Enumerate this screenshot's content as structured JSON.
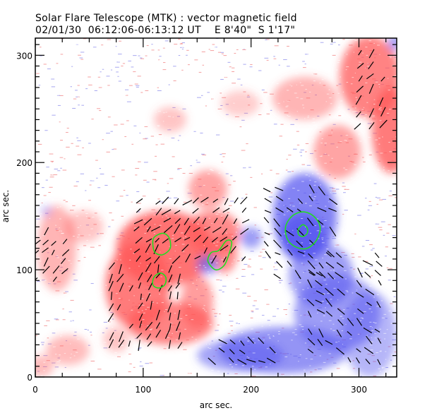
{
  "chart_data": {
    "type": "heatmap",
    "title": "Solar Flare Telescope (MTK) : vector magnetic field",
    "subtitle": "02/01/30  06:12:06-06:13:12 UT    E 8'40\"  S 1'17\"",
    "xlabel": "arc sec.",
    "ylabel": "arc sec.",
    "xlim": [
      0,
      335
    ],
    "ylim": [
      0,
      316
    ],
    "xticks": [
      0,
      100,
      200,
      300
    ],
    "yticks": [
      0,
      100,
      200,
      300
    ],
    "x_minor_step": 25,
    "y_minor_step": 10,
    "grid": false,
    "colormap": {
      "positive_polarity": "#ff5a5a",
      "negative_polarity": "#5a5af0",
      "background": "#ffffff",
      "vectors": "#000000",
      "contours": "#22dd22"
    },
    "positive_regions": [
      {
        "x": 310,
        "y": 280,
        "rx": 28,
        "ry": 38,
        "strength": 0.75
      },
      {
        "x": 330,
        "y": 230,
        "rx": 18,
        "ry": 40,
        "strength": 0.8
      },
      {
        "x": 250,
        "y": 260,
        "rx": 30,
        "ry": 20,
        "strength": 0.45
      },
      {
        "x": 280,
        "y": 210,
        "rx": 22,
        "ry": 25,
        "strength": 0.55
      },
      {
        "x": 125,
        "y": 240,
        "rx": 15,
        "ry": 12,
        "strength": 0.35
      },
      {
        "x": 190,
        "y": 255,
        "rx": 18,
        "ry": 12,
        "strength": 0.3
      },
      {
        "x": 160,
        "y": 175,
        "rx": 18,
        "ry": 18,
        "strength": 0.55
      },
      {
        "x": 120,
        "y": 120,
        "rx": 45,
        "ry": 35,
        "strength": 0.85
      },
      {
        "x": 165,
        "y": 135,
        "rx": 25,
        "ry": 20,
        "strength": 0.7
      },
      {
        "x": 175,
        "y": 115,
        "rx": 12,
        "ry": 18,
        "strength": 0.7
      },
      {
        "x": 95,
        "y": 85,
        "rx": 30,
        "ry": 40,
        "strength": 0.8
      },
      {
        "x": 125,
        "y": 50,
        "rx": 40,
        "ry": 20,
        "strength": 0.75
      },
      {
        "x": 150,
        "y": 70,
        "rx": 15,
        "ry": 25,
        "strength": 0.6
      },
      {
        "x": 20,
        "y": 120,
        "rx": 18,
        "ry": 40,
        "strength": 0.45
      },
      {
        "x": 45,
        "y": 140,
        "rx": 18,
        "ry": 15,
        "strength": 0.35
      },
      {
        "x": 30,
        "y": 25,
        "rx": 20,
        "ry": 14,
        "strength": 0.4
      },
      {
        "x": 5,
        "y": 10,
        "rx": 12,
        "ry": 10,
        "strength": 0.4
      },
      {
        "x": 75,
        "y": 35,
        "rx": 12,
        "ry": 12,
        "strength": 0.35
      }
    ],
    "negative_regions": [
      {
        "x": 250,
        "y": 150,
        "rx": 30,
        "ry": 40,
        "strength": 0.75
      },
      {
        "x": 248,
        "y": 130,
        "rx": 22,
        "ry": 22,
        "strength": 0.9
      },
      {
        "x": 265,
        "y": 95,
        "rx": 30,
        "ry": 30,
        "strength": 0.6
      },
      {
        "x": 280,
        "y": 60,
        "rx": 40,
        "ry": 35,
        "strength": 0.6
      },
      {
        "x": 230,
        "y": 25,
        "rx": 60,
        "ry": 22,
        "strength": 0.65
      },
      {
        "x": 190,
        "y": 20,
        "rx": 40,
        "ry": 15,
        "strength": 0.55
      },
      {
        "x": 310,
        "y": 40,
        "rx": 25,
        "ry": 40,
        "strength": 0.45
      },
      {
        "x": 200,
        "y": 130,
        "rx": 10,
        "ry": 10,
        "strength": 0.6
      },
      {
        "x": 160,
        "y": 105,
        "rx": 10,
        "ry": 9,
        "strength": 0.65
      },
      {
        "x": 333,
        "y": 312,
        "rx": 6,
        "ry": 8,
        "strength": 0.6
      },
      {
        "x": 10,
        "y": 155,
        "rx": 5,
        "ry": 5,
        "strength": 0.35
      }
    ],
    "contours": [
      {
        "name": "contour-neg-outer",
        "points": [
          [
            232,
            140
          ],
          [
            238,
            150
          ],
          [
            248,
            154
          ],
          [
            258,
            150
          ],
          [
            264,
            140
          ],
          [
            261,
            128
          ],
          [
            252,
            120
          ],
          [
            242,
            121
          ],
          [
            234,
            128
          ]
        ]
      },
      {
        "name": "contour-neg-inner",
        "points": [
          [
            244,
            138
          ],
          [
            248,
            142
          ],
          [
            252,
            139
          ],
          [
            252,
            134
          ],
          [
            248,
            131
          ],
          [
            244,
            133
          ]
        ]
      },
      {
        "name": "contour-pos-1",
        "points": [
          [
            110,
            130
          ],
          [
            118,
            134
          ],
          [
            124,
            130
          ],
          [
            125,
            120
          ],
          [
            118,
            114
          ],
          [
            111,
            116
          ],
          [
            109,
            123
          ]
        ]
      },
      {
        "name": "contour-pos-2",
        "points": [
          [
            110,
            93
          ],
          [
            116,
            97
          ],
          [
            121,
            93
          ],
          [
            120,
            86
          ],
          [
            114,
            83
          ],
          [
            109,
            86
          ]
        ]
      },
      {
        "name": "contour-mixed",
        "points": [
          [
            160,
            108
          ],
          [
            167,
            100
          ],
          [
            175,
            104
          ],
          [
            180,
            116
          ],
          [
            182,
            126
          ],
          [
            177,
            127
          ],
          [
            170,
            118
          ],
          [
            163,
            116
          ]
        ]
      }
    ],
    "vector_fields": [
      {
        "region": "negative-main",
        "x": [
          215,
          275
        ],
        "y": [
          95,
          180
        ],
        "step": 10,
        "angle_deg": -40
      },
      {
        "region": "negative-southeast",
        "x": [
          255,
          325
        ],
        "y": [
          15,
          115
        ],
        "step": 9,
        "angle_deg": -45
      },
      {
        "region": "negative-south",
        "x": [
          165,
          225
        ],
        "y": [
          15,
          35
        ],
        "step": 9,
        "angle_deg": -35
      },
      {
        "region": "positive-central",
        "x": [
          95,
          195
        ],
        "y": [
          110,
          165
        ],
        "step": 9,
        "angle_deg": 45
      },
      {
        "region": "positive-southwest",
        "x": [
          70,
          135
        ],
        "y": [
          30,
          110
        ],
        "step": 9,
        "angle_deg": 65
      },
      {
        "region": "positive-west",
        "x": [
          0,
          35
        ],
        "y": [
          90,
          135
        ],
        "step": 9,
        "angle_deg": 45
      },
      {
        "region": "positive-northeast",
        "x": [
          300,
          330
        ],
        "y": [
          235,
          305
        ],
        "step": 11,
        "angle_deg": 50
      }
    ]
  }
}
